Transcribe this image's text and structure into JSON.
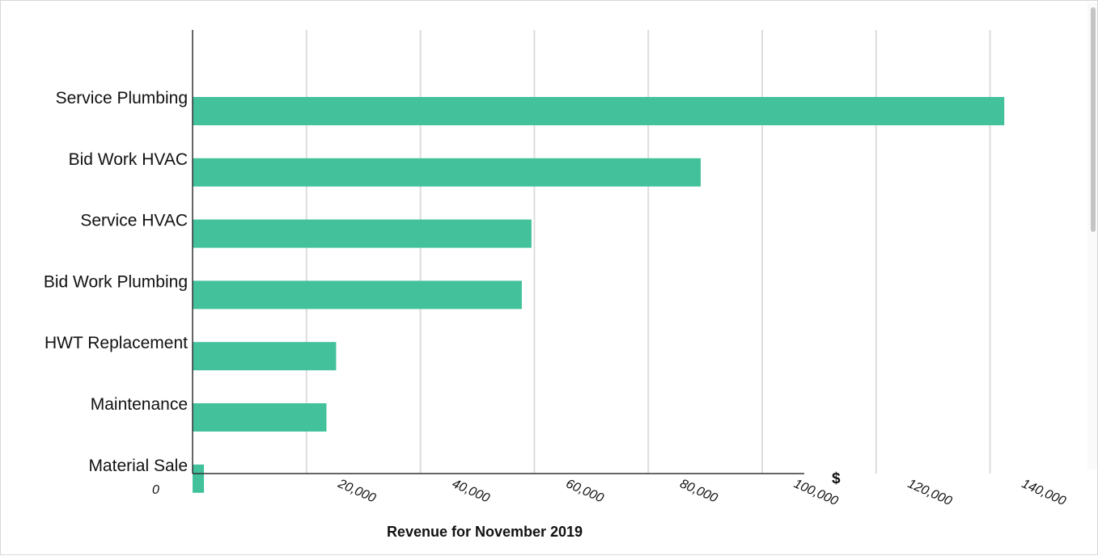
{
  "chart_data": {
    "type": "bar",
    "orientation": "horizontal",
    "categories": [
      "Service Plumbing",
      "Bid Work HVAC",
      "Service HVAC",
      "Bid Work Plumbing",
      "HWT Replacement",
      "Maintenance",
      "Material Sale"
    ],
    "values": [
      142500,
      89200,
      59500,
      57800,
      25200,
      23500,
      2000
    ],
    "xlabel": "Revenue for November 2019",
    "xunit": "$",
    "xticks": [
      "0",
      "20,000",
      "40,000",
      "60,000",
      "80,000",
      "100,000",
      "120,000",
      "140,000"
    ],
    "xtick_values": [
      0,
      20000,
      40000,
      60000,
      80000,
      100000,
      120000,
      140000
    ],
    "xlim": [
      0,
      140000
    ],
    "grid": true,
    "legend": "none",
    "bar_color": "#42c19a"
  }
}
